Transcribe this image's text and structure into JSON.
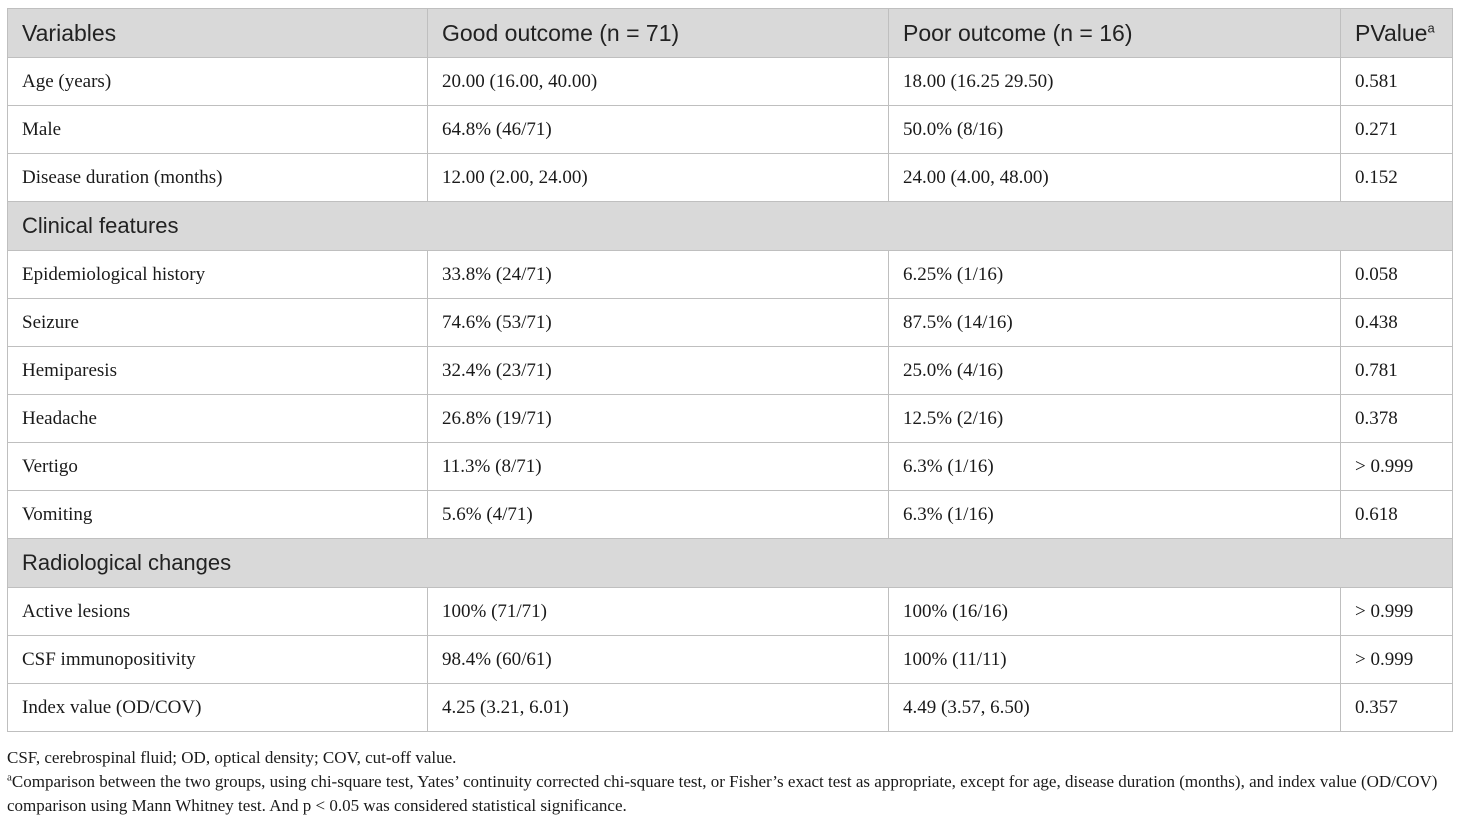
{
  "header": {
    "variables": "Variables",
    "good": "Good outcome (n = 71)",
    "poor": "Poor outcome (n = 16)",
    "pvalue": "PValue",
    "pvalue_sup": "a"
  },
  "rows_basic": [
    {
      "name": "Age (years)",
      "good": "20.00 (16.00, 40.00)",
      "poor": "18.00 (16.25 29.50)",
      "p": "0.581"
    },
    {
      "name": "Male",
      "good": "64.8% (46/71)",
      "poor": "50.0% (8/16)",
      "p": "0.271"
    },
    {
      "name": "Disease duration (months)",
      "good": "12.00 (2.00, 24.00)",
      "poor": "24.00 (4.00, 48.00)",
      "p": "0.152"
    }
  ],
  "section_clinical": "Clinical features",
  "rows_clinical": [
    {
      "name": "Epidemiological history",
      "good": "33.8% (24/71)",
      "poor": "6.25% (1/16)",
      "p": "0.058"
    },
    {
      "name": "Seizure",
      "good": "74.6% (53/71)",
      "poor": "87.5% (14/16)",
      "p": "0.438"
    },
    {
      "name": "Hemiparesis",
      "good": "32.4% (23/71)",
      "poor": "25.0% (4/16)",
      "p": "0.781"
    },
    {
      "name": "Headache",
      "good": "26.8% (19/71)",
      "poor": "12.5% (2/16)",
      "p": "0.378"
    },
    {
      "name": "Vertigo",
      "good": "11.3% (8/71)",
      "poor": "6.3% (1/16)",
      "p": "> 0.999"
    },
    {
      "name": "Vomiting",
      "good": "5.6% (4/71)",
      "poor": "6.3% (1/16)",
      "p": "0.618"
    }
  ],
  "section_radiological": "Radiological changes",
  "rows_radiological": [
    {
      "name": "Active lesions",
      "good": "100% (71/71)",
      "poor": "100% (16/16)",
      "p": "> 0.999"
    },
    {
      "name": "CSF immunopositivity",
      "good": "98.4% (60/61)",
      "poor": "100% (11/11)",
      "p": "> 0.999"
    },
    {
      "name": "Index value (OD/COV)",
      "good": "4.25 (3.21, 6.01)",
      "poor": "4.49 (3.57, 6.50)",
      "p": "0.357"
    }
  ],
  "footnotes": {
    "abbreviations": "CSF, cerebrospinal fluid; OD, optical density; COV, cut-off value.",
    "note_marker": "a",
    "note_text": "Comparison between the two groups, using chi-square test, Yates’ continuity corrected chi-square test, or Fisher’s exact test as appropriate, except for age, disease duration (months), and index value (OD/COV) comparison using Mann Whitney test. And p < 0.05 was considered statistical significance."
  }
}
